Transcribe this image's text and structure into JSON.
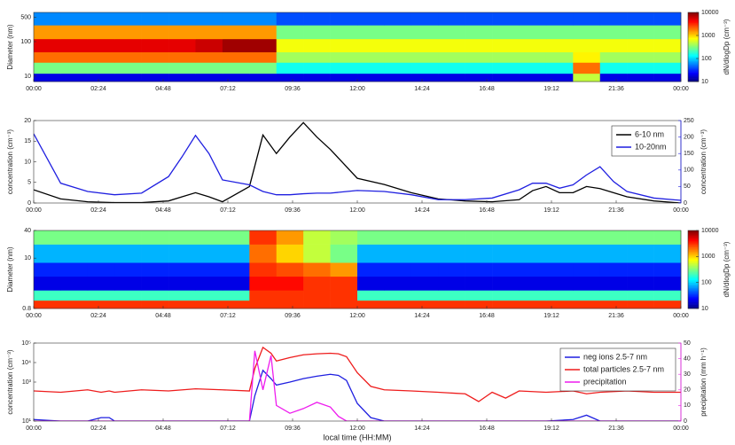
{
  "chart_data": [
    {
      "type": "heatmap",
      "ylabel": "Diameter (nm)",
      "clabel": "dN/dlogDp (cm⁻³)",
      "x_bins": [
        0,
        1,
        2,
        3,
        4,
        5,
        6,
        7,
        8,
        9,
        10,
        11,
        12,
        13,
        14,
        15,
        16,
        17,
        18,
        19,
        20,
        21,
        22,
        23,
        24
      ],
      "y_bins": [
        7,
        12,
        25,
        50,
        120,
        300,
        700
      ],
      "z": [
        [
          20,
          20,
          20,
          20,
          20,
          20,
          20,
          20,
          20,
          20,
          20,
          20,
          20,
          20,
          20,
          20,
          20,
          20,
          20,
          20,
          500,
          20,
          20,
          20
        ],
        [
          300,
          300,
          300,
          300,
          300,
          300,
          300,
          300,
          300,
          150,
          150,
          150,
          150,
          150,
          150,
          150,
          150,
          150,
          150,
          150,
          2000,
          150,
          150,
          150
        ],
        [
          2000,
          2000,
          2000,
          2000,
          2000,
          2000,
          2000,
          2000,
          2000,
          400,
          400,
          400,
          400,
          400,
          400,
          400,
          400,
          400,
          400,
          400,
          800,
          400,
          400,
          400
        ],
        [
          5000,
          5000,
          5000,
          5000,
          5000,
          5000,
          6000,
          8000,
          8000,
          700,
          700,
          700,
          700,
          700,
          700,
          700,
          700,
          700,
          700,
          700,
          700,
          700,
          700,
          700
        ],
        [
          1500,
          1500,
          1500,
          1500,
          1500,
          1500,
          1500,
          1500,
          1500,
          300,
          300,
          300,
          300,
          300,
          300,
          300,
          300,
          300,
          300,
          300,
          300,
          300,
          300,
          300
        ],
        [
          60,
          60,
          60,
          60,
          60,
          60,
          60,
          60,
          60,
          40,
          40,
          40,
          40,
          40,
          40,
          40,
          40,
          40,
          40,
          40,
          40,
          40,
          40,
          40
        ]
      ],
      "xlim": [
        0,
        24
      ],
      "xticks": [
        {
          "value": 0,
          "label": "00:00"
        },
        {
          "value": 2.4,
          "label": "02:24"
        },
        {
          "value": 4.8,
          "label": "04:48"
        },
        {
          "value": 7.2,
          "label": "07:12"
        },
        {
          "value": 9.6,
          "label": "09:36"
        },
        {
          "value": 12,
          "label": "12:00"
        },
        {
          "value": 14.4,
          "label": "14:24"
        },
        {
          "value": 16.8,
          "label": "16:48"
        },
        {
          "value": 19.2,
          "label": "19:12"
        },
        {
          "value": 21.6,
          "label": "21:36"
        },
        {
          "value": 24,
          "label": "00:00"
        }
      ],
      "ylim": [
        7,
        700
      ],
      "yticks": [
        10,
        100,
        500
      ],
      "ylog": true,
      "clim": [
        10,
        10000
      ],
      "cticks": [
        10,
        100,
        1000,
        10000
      ],
      "clog": true
    },
    {
      "type": "line",
      "ylabel": "concentration (cm⁻³)",
      "y2label": "concentration (cm⁻³)",
      "x": [
        0,
        1,
        2,
        3,
        4,
        5,
        5.5,
        6,
        6.5,
        7,
        8,
        8.5,
        9,
        9.5,
        10,
        10.5,
        11,
        12,
        13,
        14,
        15,
        16,
        17,
        18,
        18.5,
        19,
        19.5,
        20,
        20.5,
        21,
        21.5,
        22,
        23,
        24
      ],
      "series": [
        {
          "name": "6-10 nm",
          "color": "#000000",
          "values": [
            3.2,
            1,
            0.3,
            0.1,
            0.1,
            0.5,
            1.5,
            2.5,
            1.5,
            0.3,
            4,
            16.5,
            12,
            16,
            19.5,
            16,
            13,
            6,
            4.5,
            2.5,
            1,
            0.5,
            0.3,
            0.8,
            3,
            4,
            2.5,
            2.5,
            4,
            3.5,
            2.5,
            1.5,
            0.5,
            0
          ]
        },
        {
          "name": "10-20nm",
          "color": "#1f1fe0",
          "axis": "y2",
          "values": [
            210,
            60,
            35,
            25,
            30,
            80,
            140,
            205,
            150,
            70,
            55,
            35,
            25,
            25,
            28,
            30,
            30,
            38,
            35,
            25,
            10,
            10,
            15,
            40,
            60,
            60,
            45,
            55,
            85,
            110,
            65,
            35,
            15,
            8
          ]
        }
      ],
      "xlim": [
        0,
        24
      ],
      "xticks": [
        {
          "value": 0,
          "label": "00:00"
        },
        {
          "value": 2.4,
          "label": "02:24"
        },
        {
          "value": 4.8,
          "label": "04:48"
        },
        {
          "value": 7.2,
          "label": "07:12"
        },
        {
          "value": 9.6,
          "label": "09:36"
        },
        {
          "value": 12,
          "label": "12:00"
        },
        {
          "value": 14.4,
          "label": "14:24"
        },
        {
          "value": 16.8,
          "label": "16:48"
        },
        {
          "value": 19.2,
          "label": "19:12"
        },
        {
          "value": 21.6,
          "label": "21:36"
        },
        {
          "value": 24,
          "label": "00:00"
        }
      ],
      "ylim": [
        0,
        20
      ],
      "yticks": [
        0,
        5,
        10,
        15,
        20
      ],
      "y2lim": [
        0,
        250
      ],
      "y2ticks": [
        0,
        50,
        100,
        150,
        200,
        250
      ],
      "legend": "northeast"
    },
    {
      "type": "heatmap",
      "ylabel": "Diameter (nm)",
      "clabel": "dN/dlogDp (cm⁻³)",
      "x_bins": [
        0,
        1,
        2,
        3,
        4,
        5,
        6,
        7,
        8,
        9,
        10,
        11,
        12,
        13,
        14,
        15,
        16,
        17,
        18,
        19,
        20,
        21,
        22,
        23,
        24
      ],
      "y_bins": [
        0.8,
        1.2,
        2,
        4,
        8,
        20,
        40
      ],
      "z": [
        [
          3000,
          3000,
          3000,
          3000,
          3000,
          3000,
          3000,
          3000,
          3000,
          3000,
          3000,
          3000,
          3000,
          3000,
          3000,
          3000,
          3000,
          3000,
          3000,
          3000,
          3000,
          3000,
          3000,
          3000
        ],
        [
          200,
          200,
          200,
          200,
          200,
          200,
          200,
          200,
          3000,
          3000,
          3000,
          3000,
          200,
          200,
          200,
          200,
          200,
          200,
          200,
          200,
          200,
          200,
          200,
          200
        ],
        [
          20,
          20,
          20,
          20,
          20,
          20,
          20,
          20,
          4000,
          4000,
          3000,
          3000,
          20,
          20,
          20,
          20,
          20,
          20,
          20,
          20,
          20,
          20,
          20,
          20
        ],
        [
          30,
          30,
          30,
          30,
          30,
          30,
          30,
          30,
          3000,
          2500,
          2000,
          1500,
          30,
          30,
          30,
          30,
          30,
          30,
          30,
          30,
          30,
          30,
          30,
          30
        ],
        [
          80,
          80,
          80,
          80,
          80,
          80,
          80,
          80,
          2000,
          1000,
          500,
          300,
          80,
          80,
          80,
          80,
          80,
          80,
          80,
          80,
          80,
          80,
          80,
          80
        ],
        [
          300,
          300,
          300,
          300,
          300,
          300,
          300,
          300,
          3000,
          1500,
          500,
          400,
          300,
          300,
          300,
          300,
          300,
          300,
          300,
          300,
          300,
          300,
          300,
          300
        ]
      ],
      "xlim": [
        0,
        24
      ],
      "xticks": [
        {
          "value": 0,
          "label": "00:00"
        },
        {
          "value": 2.4,
          "label": "02:24"
        },
        {
          "value": 4.8,
          "label": "04:48"
        },
        {
          "value": 7.2,
          "label": "07:12"
        },
        {
          "value": 9.6,
          "label": "09:36"
        },
        {
          "value": 12,
          "label": "12:00"
        },
        {
          "value": 14.4,
          "label": "14:24"
        },
        {
          "value": 16.8,
          "label": "16:48"
        },
        {
          "value": 19.2,
          "label": "19:12"
        },
        {
          "value": 21.6,
          "label": "21:36"
        },
        {
          "value": 24,
          "label": "00:00"
        }
      ],
      "ylim": [
        0.8,
        40
      ],
      "yticks": [
        0.8,
        10,
        40
      ],
      "ylog": true,
      "clim": [
        10,
        10000
      ],
      "cticks": [
        10,
        100,
        1000,
        10000
      ],
      "clog": true
    },
    {
      "type": "line",
      "ylabel": "concentration (cm⁻³)",
      "y2label": "precipitation (mm h⁻¹)",
      "xlabel": "local time (HH:MM)",
      "x": [
        0,
        1,
        2,
        2.5,
        2.8,
        3,
        4,
        5,
        6,
        7,
        8,
        8.2,
        8.5,
        8.8,
        9,
        9.5,
        10,
        10.5,
        11,
        11.3,
        11.6,
        12,
        12.5,
        13,
        14,
        15,
        16,
        16.5,
        17,
        17.5,
        18,
        19,
        20,
        20.5,
        21,
        22,
        23,
        24
      ],
      "series": [
        {
          "name": "neg ions 2.5-7 nm",
          "color": "#1f1fe0",
          "values": [
            12,
            10,
            10,
            15,
            15,
            10,
            10,
            10,
            10,
            10,
            10,
            200,
            4000,
            1500,
            700,
            1000,
            1500,
            2000,
            2500,
            2200,
            1200,
            80,
            15,
            10,
            10,
            10,
            10,
            10,
            10,
            10,
            10,
            10,
            12,
            20,
            10,
            10,
            10,
            10
          ]
        },
        {
          "name": "total particles 2.5-7 nm",
          "color": "#ee1c1c",
          "values": [
            350,
            300,
            400,
            300,
            350,
            300,
            400,
            350,
            450,
            400,
            350,
            5000,
            60000,
            30000,
            12000,
            18000,
            25000,
            28000,
            30000,
            28000,
            20000,
            3000,
            600,
            400,
            350,
            300,
            250,
            100,
            300,
            150,
            350,
            300,
            350,
            250,
            300,
            350,
            300,
            300
          ]
        },
        {
          "name": "precipitation",
          "color": "#ee1cee",
          "axis": "y2",
          "values": [
            0,
            0,
            0,
            0,
            0,
            0,
            0,
            0,
            0,
            0,
            0,
            45,
            20,
            42,
            10,
            5,
            8,
            12,
            9,
            3,
            0,
            0,
            0,
            0,
            0,
            0,
            0,
            0,
            0,
            0,
            0,
            0,
            0,
            0,
            0,
            0,
            0,
            0
          ]
        }
      ],
      "xlim": [
        0,
        24
      ],
      "xticks": [
        {
          "value": 0,
          "label": "00:00"
        },
        {
          "value": 2.4,
          "label": "02:24"
        },
        {
          "value": 4.8,
          "label": "04:48"
        },
        {
          "value": 7.2,
          "label": "07:12"
        },
        {
          "value": 9.6,
          "label": "09:36"
        },
        {
          "value": 12,
          "label": "12:00"
        },
        {
          "value": 14.4,
          "label": "14:24"
        },
        {
          "value": 16.8,
          "label": "16:48"
        },
        {
          "value": 19.2,
          "label": "19:12"
        },
        {
          "value": 21.6,
          "label": "21:36"
        },
        {
          "value": 24,
          "label": "00:00"
        }
      ],
      "ylim": [
        10,
        100000
      ],
      "yticks": [
        {
          "value": 10,
          "label": "10¹"
        },
        {
          "value": 1000,
          "label": "10³"
        },
        {
          "value": 10000,
          "label": "10⁴"
        },
        {
          "value": 100000,
          "label": "10⁵"
        }
      ],
      "ylog": true,
      "y2lim": [
        0,
        50
      ],
      "y2ticks": [
        0,
        10,
        20,
        30,
        40,
        50
      ],
      "legend": "northeast"
    }
  ]
}
